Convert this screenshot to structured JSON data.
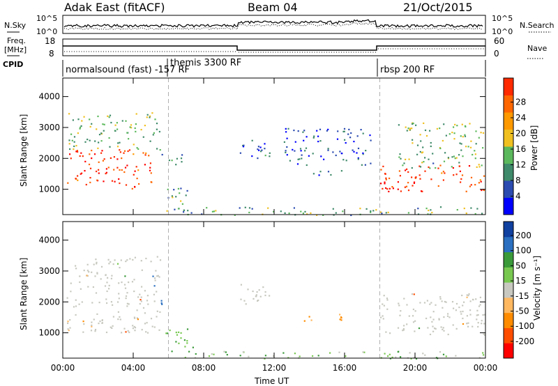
{
  "header": {
    "radar": "Adak East (fitACF)",
    "beam": "Beam 04",
    "date": "21/Oct/2015"
  },
  "left_labels": {
    "nsky": "N.Sky",
    "freq_line1": "Freq.",
    "freq_line2": "[MHz]",
    "cpid": "CPID"
  },
  "right_labels": {
    "nsearch": "N.Search",
    "nave": "Nave"
  },
  "noise_axis": {
    "top": "10^5",
    "bottom": "10^0"
  },
  "freq_axis": {
    "top": "18",
    "bottom": "8",
    "right_top": "60",
    "right_bottom": "0"
  },
  "cpid_segments": [
    {
      "label": "normalsound (fast) -157 RF",
      "start_hour": 0
    },
    {
      "label": "themis 3300 RF",
      "start_hour": 6
    },
    {
      "label": "rbsp 200 RF",
      "start_hour": 18
    }
  ],
  "colors": {
    "power_scale": [
      "#0000ff",
      "#2b4bb0",
      "#3f8a6a",
      "#5cb85c",
      "#f0c020",
      "#ff9900",
      "#ff6600",
      "#ff2a00",
      "#ff0000"
    ],
    "velocity_scale": [
      "#ff0000",
      "#ff4d00",
      "#ff8c00",
      "#ffb860",
      "#c8c8c0",
      "#78c850",
      "#3a9a3a",
      "#2a6fc0",
      "#1040a0"
    ],
    "ground_scatter": "#c0c0bc"
  },
  "chart_data": [
    {
      "type": "heatmap",
      "panel": "power",
      "xlabel": "Time UT",
      "ylabel": "Slant Range [km]",
      "x_ticks": [
        "00:00",
        "04:00",
        "08:00",
        "12:00",
        "16:00",
        "20:00",
        "00:00"
      ],
      "xlim_hours": [
        0,
        24
      ],
      "ylim": [
        180,
        4600
      ],
      "y_ticks": [
        1000,
        2000,
        3000,
        4000
      ],
      "colorbar_label": "Power [dB]",
      "colorbar_ticks": [
        4,
        8,
        12,
        16,
        20,
        24,
        28
      ],
      "colorbar_range": [
        0,
        32
      ],
      "regions": [
        {
          "name": "strong-echo-band-early",
          "t0": 0.2,
          "t1": 5.0,
          "r0": 1000,
          "r1": 2300,
          "level": 26
        },
        {
          "name": "scatter-early-upper",
          "t0": 0.3,
          "t1": 5.5,
          "r0": 2300,
          "r1": 3500,
          "level": 12
        },
        {
          "name": "mid-echo-06",
          "t0": 5.3,
          "t1": 6.8,
          "r0": 1800,
          "r1": 2200,
          "level": 10
        },
        {
          "name": "near-range-06",
          "t0": 5.8,
          "t1": 7.2,
          "r0": 300,
          "r1": 1100,
          "level": 10
        },
        {
          "name": "patch-11h",
          "t0": 10.0,
          "t1": 11.8,
          "r0": 1950,
          "r1": 2600,
          "level": 6
        },
        {
          "name": "patch-14h",
          "t0": 13.6,
          "t1": 15.8,
          "r0": 1400,
          "r1": 1650,
          "level": 8
        },
        {
          "name": "arc-13-18h",
          "t0": 12.5,
          "t1": 17.5,
          "r0": 1800,
          "r1": 3000,
          "level": 6
        },
        {
          "name": "strong-echo-band-late",
          "t0": 18.0,
          "t1": 24.0,
          "r0": 950,
          "r1": 1800,
          "level": 26
        },
        {
          "name": "scatter-late-upper",
          "t0": 19.0,
          "t1": 24.0,
          "r0": 1700,
          "r1": 3200,
          "level": 12
        },
        {
          "name": "near-range-clutter",
          "t0": 6.0,
          "t1": 24.0,
          "r0": 180,
          "r1": 450,
          "level": 10
        }
      ]
    },
    {
      "type": "heatmap",
      "panel": "velocity",
      "xlabel": "Time UT",
      "ylabel": "Slant Range [km]",
      "x_ticks": [
        "00:00",
        "04:00",
        "08:00",
        "12:00",
        "16:00",
        "20:00",
        "00:00"
      ],
      "xlim_hours": [
        0,
        24
      ],
      "ylim": [
        180,
        4600
      ],
      "y_ticks": [
        1000,
        2000,
        3000,
        4000
      ],
      "colorbar_label": "Velocity [m s⁻¹]",
      "colorbar_ticks": [
        200,
        100,
        50,
        15,
        -15,
        -50,
        -100,
        -200
      ],
      "regions": [
        {
          "name": "ground-scatter-early",
          "t0": 0.2,
          "t1": 5.5,
          "r0": 1000,
          "r1": 2400,
          "level": 0
        },
        {
          "name": "scatter-early-upper",
          "t0": 0.3,
          "t1": 5.5,
          "r0": 2400,
          "r1": 3500,
          "level": 0
        },
        {
          "name": "flow-06",
          "t0": 5.3,
          "t1": 6.6,
          "r0": 1900,
          "r1": 2100,
          "level": 150
        },
        {
          "name": "near-range-06",
          "t0": 5.8,
          "t1": 7.5,
          "r0": 400,
          "r1": 1200,
          "level": 30
        },
        {
          "name": "patch-11h",
          "t0": 10.0,
          "t1": 11.8,
          "r0": 1950,
          "r1": 2600,
          "level": 0
        },
        {
          "name": "patch-14h",
          "t0": 13.6,
          "t1": 15.8,
          "r0": 1400,
          "r1": 1650,
          "level": -60
        },
        {
          "name": "ground-scatter-late",
          "t0": 18.0,
          "t1": 24.0,
          "r0": 950,
          "r1": 2300,
          "level": 0
        },
        {
          "name": "near-range-clutter",
          "t0": 6.0,
          "t1": 24.0,
          "r0": 180,
          "r1": 420,
          "level": 30
        }
      ]
    }
  ]
}
